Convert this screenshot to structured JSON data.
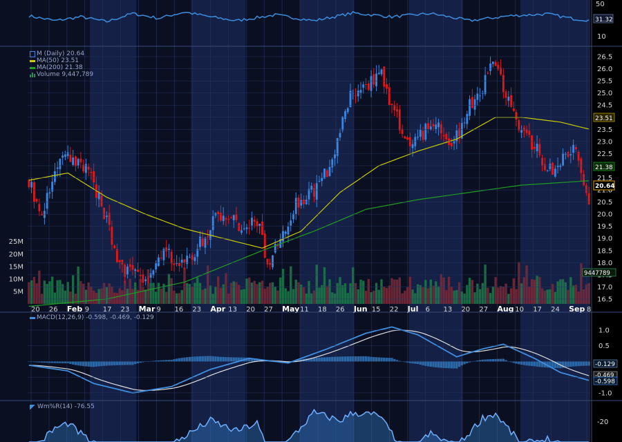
{
  "chart_data": {
    "type": "candlestick",
    "price_axis": {
      "ticks": [
        "16.5",
        "17.0",
        "17.5",
        "18.0",
        "18.5",
        "19.0",
        "19.5",
        "20.0",
        "20.5",
        "21.0",
        "21.5",
        "22.0",
        "22.5",
        "23.0",
        "23.5",
        "24.0",
        "24.5",
        "25.0",
        "25.5",
        "26.0",
        "26.5"
      ],
      "range": [
        16.3,
        26.9
      ]
    },
    "volume_axis": {
      "ticks": [
        "5M",
        "10M",
        "15M",
        "20M",
        "25M"
      ],
      "range": [
        0,
        36000000
      ]
    },
    "x_labels": [
      "20",
      "26",
      "Feb",
      "9",
      "17",
      "23",
      "Mar",
      "9",
      "16",
      "23",
      "Apr",
      "13",
      "20",
      "27",
      "May",
      "11",
      "18",
      "26",
      "Jun",
      "15",
      "22",
      "Jul",
      "6",
      "13",
      "20",
      "27",
      "Aug",
      "10",
      "17",
      "24",
      "Sep",
      "8"
    ],
    "legend": {
      "price": "M (Daily) 20.64",
      "ma50": "MA(50) 23.51",
      "ma200": "MA(200) 21.38",
      "volume": "Volume 9,447,789"
    },
    "last_labels": {
      "ma50": "23.51",
      "ma200": "21.38",
      "close": "20.64",
      "volume": "9447789"
    },
    "waypoints": [
      [
        0,
        21.3
      ],
      [
        5,
        20.0
      ],
      [
        13,
        22.4
      ],
      [
        22,
        22.0
      ],
      [
        30,
        19.8
      ],
      [
        35,
        17.8
      ],
      [
        45,
        17.3
      ],
      [
        52,
        18.6
      ],
      [
        58,
        17.8
      ],
      [
        65,
        18.6
      ],
      [
        72,
        19.9
      ],
      [
        77,
        20.0
      ],
      [
        83,
        19.3
      ],
      [
        88,
        19.8
      ],
      [
        92,
        18.0
      ],
      [
        97,
        18.9
      ],
      [
        103,
        20.5
      ],
      [
        110,
        21.0
      ],
      [
        116,
        22.0
      ],
      [
        121,
        23.8
      ],
      [
        124,
        25.0
      ],
      [
        131,
        25.3
      ],
      [
        135,
        26.0
      ],
      [
        140,
        24.5
      ],
      [
        143,
        23.7
      ],
      [
        147,
        22.6
      ],
      [
        153,
        23.5
      ],
      [
        158,
        23.8
      ],
      [
        163,
        22.7
      ],
      [
        170,
        24.5
      ],
      [
        175,
        25.0
      ],
      [
        178,
        26.5
      ],
      [
        185,
        24.7
      ],
      [
        190,
        23.4
      ],
      [
        195,
        22.8
      ],
      [
        199,
        22.1
      ],
      [
        203,
        21.8
      ],
      [
        207,
        22.6
      ],
      [
        211,
        22.8
      ],
      [
        214,
        21.4
      ],
      [
        216,
        20.7
      ]
    ],
    "ma50_waypoints": [
      [
        0,
        21.4
      ],
      [
        15,
        21.7
      ],
      [
        30,
        20.7
      ],
      [
        45,
        20.0
      ],
      [
        60,
        19.4
      ],
      [
        75,
        19.0
      ],
      [
        90,
        18.6
      ],
      [
        105,
        19.3
      ],
      [
        120,
        20.9
      ],
      [
        135,
        22.0
      ],
      [
        150,
        22.6
      ],
      [
        165,
        23.1
      ],
      [
        180,
        24.0
      ],
      [
        190,
        24.0
      ],
      [
        205,
        23.8
      ],
      [
        216,
        23.51
      ]
    ],
    "ma200_waypoints": [
      [
        0,
        16.2
      ],
      [
        30,
        16.5
      ],
      [
        60,
        17.2
      ],
      [
        90,
        18.5
      ],
      [
        110,
        19.3
      ],
      [
        130,
        20.2
      ],
      [
        150,
        20.6
      ],
      [
        170,
        20.9
      ],
      [
        190,
        21.2
      ],
      [
        216,
        21.38
      ]
    ],
    "macd": {
      "label": "MACD(12,26,9)",
      "values": "-0.598, -0.469, -0.129",
      "ticks": [
        "1.0",
        "0.5",
        "-0.5",
        "-1.0"
      ],
      "range": [
        -1.2,
        1.35
      ],
      "last_labels": [
        "-0.129",
        "-0.469",
        "-0.598"
      ],
      "waypoints": [
        [
          0,
          -0.12
        ],
        [
          15,
          -0.3
        ],
        [
          25,
          -0.7
        ],
        [
          40,
          -1.0
        ],
        [
          55,
          -0.8
        ],
        [
          70,
          -0.25
        ],
        [
          85,
          0.1
        ],
        [
          100,
          -0.05
        ],
        [
          115,
          0.4
        ],
        [
          130,
          0.9
        ],
        [
          140,
          1.1
        ],
        [
          150,
          0.85
        ],
        [
          165,
          0.15
        ],
        [
          175,
          0.4
        ],
        [
          183,
          0.55
        ],
        [
          195,
          0.1
        ],
        [
          205,
          -0.35
        ],
        [
          216,
          -0.6
        ]
      ]
    },
    "willr": {
      "label": "Wm%R(14) -76.55",
      "tick": "-20",
      "range": [
        -105,
        0
      ],
      "waypoints": [
        [
          0,
          -85
        ],
        [
          10,
          -40
        ],
        [
          15,
          -30
        ],
        [
          25,
          -70
        ],
        [
          35,
          -95
        ],
        [
          45,
          -80
        ],
        [
          55,
          -70
        ],
        [
          70,
          -25
        ],
        [
          80,
          -45
        ],
        [
          88,
          -30
        ],
        [
          92,
          -80
        ],
        [
          100,
          -65
        ],
        [
          110,
          -10
        ],
        [
          120,
          -25
        ],
        [
          125,
          -10
        ],
        [
          135,
          -15
        ],
        [
          145,
          -85
        ],
        [
          155,
          -50
        ],
        [
          165,
          -75
        ],
        [
          175,
          -20
        ],
        [
          180,
          -12
        ],
        [
          190,
          -70
        ],
        [
          200,
          -60
        ],
        [
          210,
          -85
        ],
        [
          216,
          -76.55
        ]
      ]
    },
    "top_panel": {
      "ticks": [
        "50",
        "31.32",
        "10"
      ],
      "waypoints": [
        [
          0,
          40
        ],
        [
          10,
          30
        ],
        [
          20,
          38
        ],
        [
          30,
          28
        ],
        [
          40,
          45
        ],
        [
          50,
          35
        ],
        [
          60,
          48
        ],
        [
          70,
          38
        ],
        [
          80,
          30
        ],
        [
          95,
          42
        ],
        [
          110,
          30
        ],
        [
          125,
          46
        ],
        [
          140,
          38
        ],
        [
          155,
          45
        ],
        [
          170,
          30
        ],
        [
          185,
          40
        ],
        [
          200,
          44
        ],
        [
          210,
          34
        ],
        [
          216,
          31.32
        ]
      ]
    },
    "colors": {
      "background": "#000000",
      "band_dark": "#0a0f22",
      "band_light": "#142046",
      "grid": "#263560",
      "up": "#3a86e0",
      "down": "#e01818",
      "ma50": "#cccc00",
      "ma200": "#1fa01f",
      "volume": "#1d7a4a",
      "volume_down": "#7a2a3a",
      "macd_line": "#3f8fe0",
      "signal_line": "#e0e0e0",
      "histogram": "#2f6fb0",
      "osc_line": "#3a8fe0",
      "axis_text": "#d8d8d8",
      "close_box": "#e8a800",
      "ma50_box": "#b89a00",
      "ma200_box": "#1b7a1b"
    }
  }
}
